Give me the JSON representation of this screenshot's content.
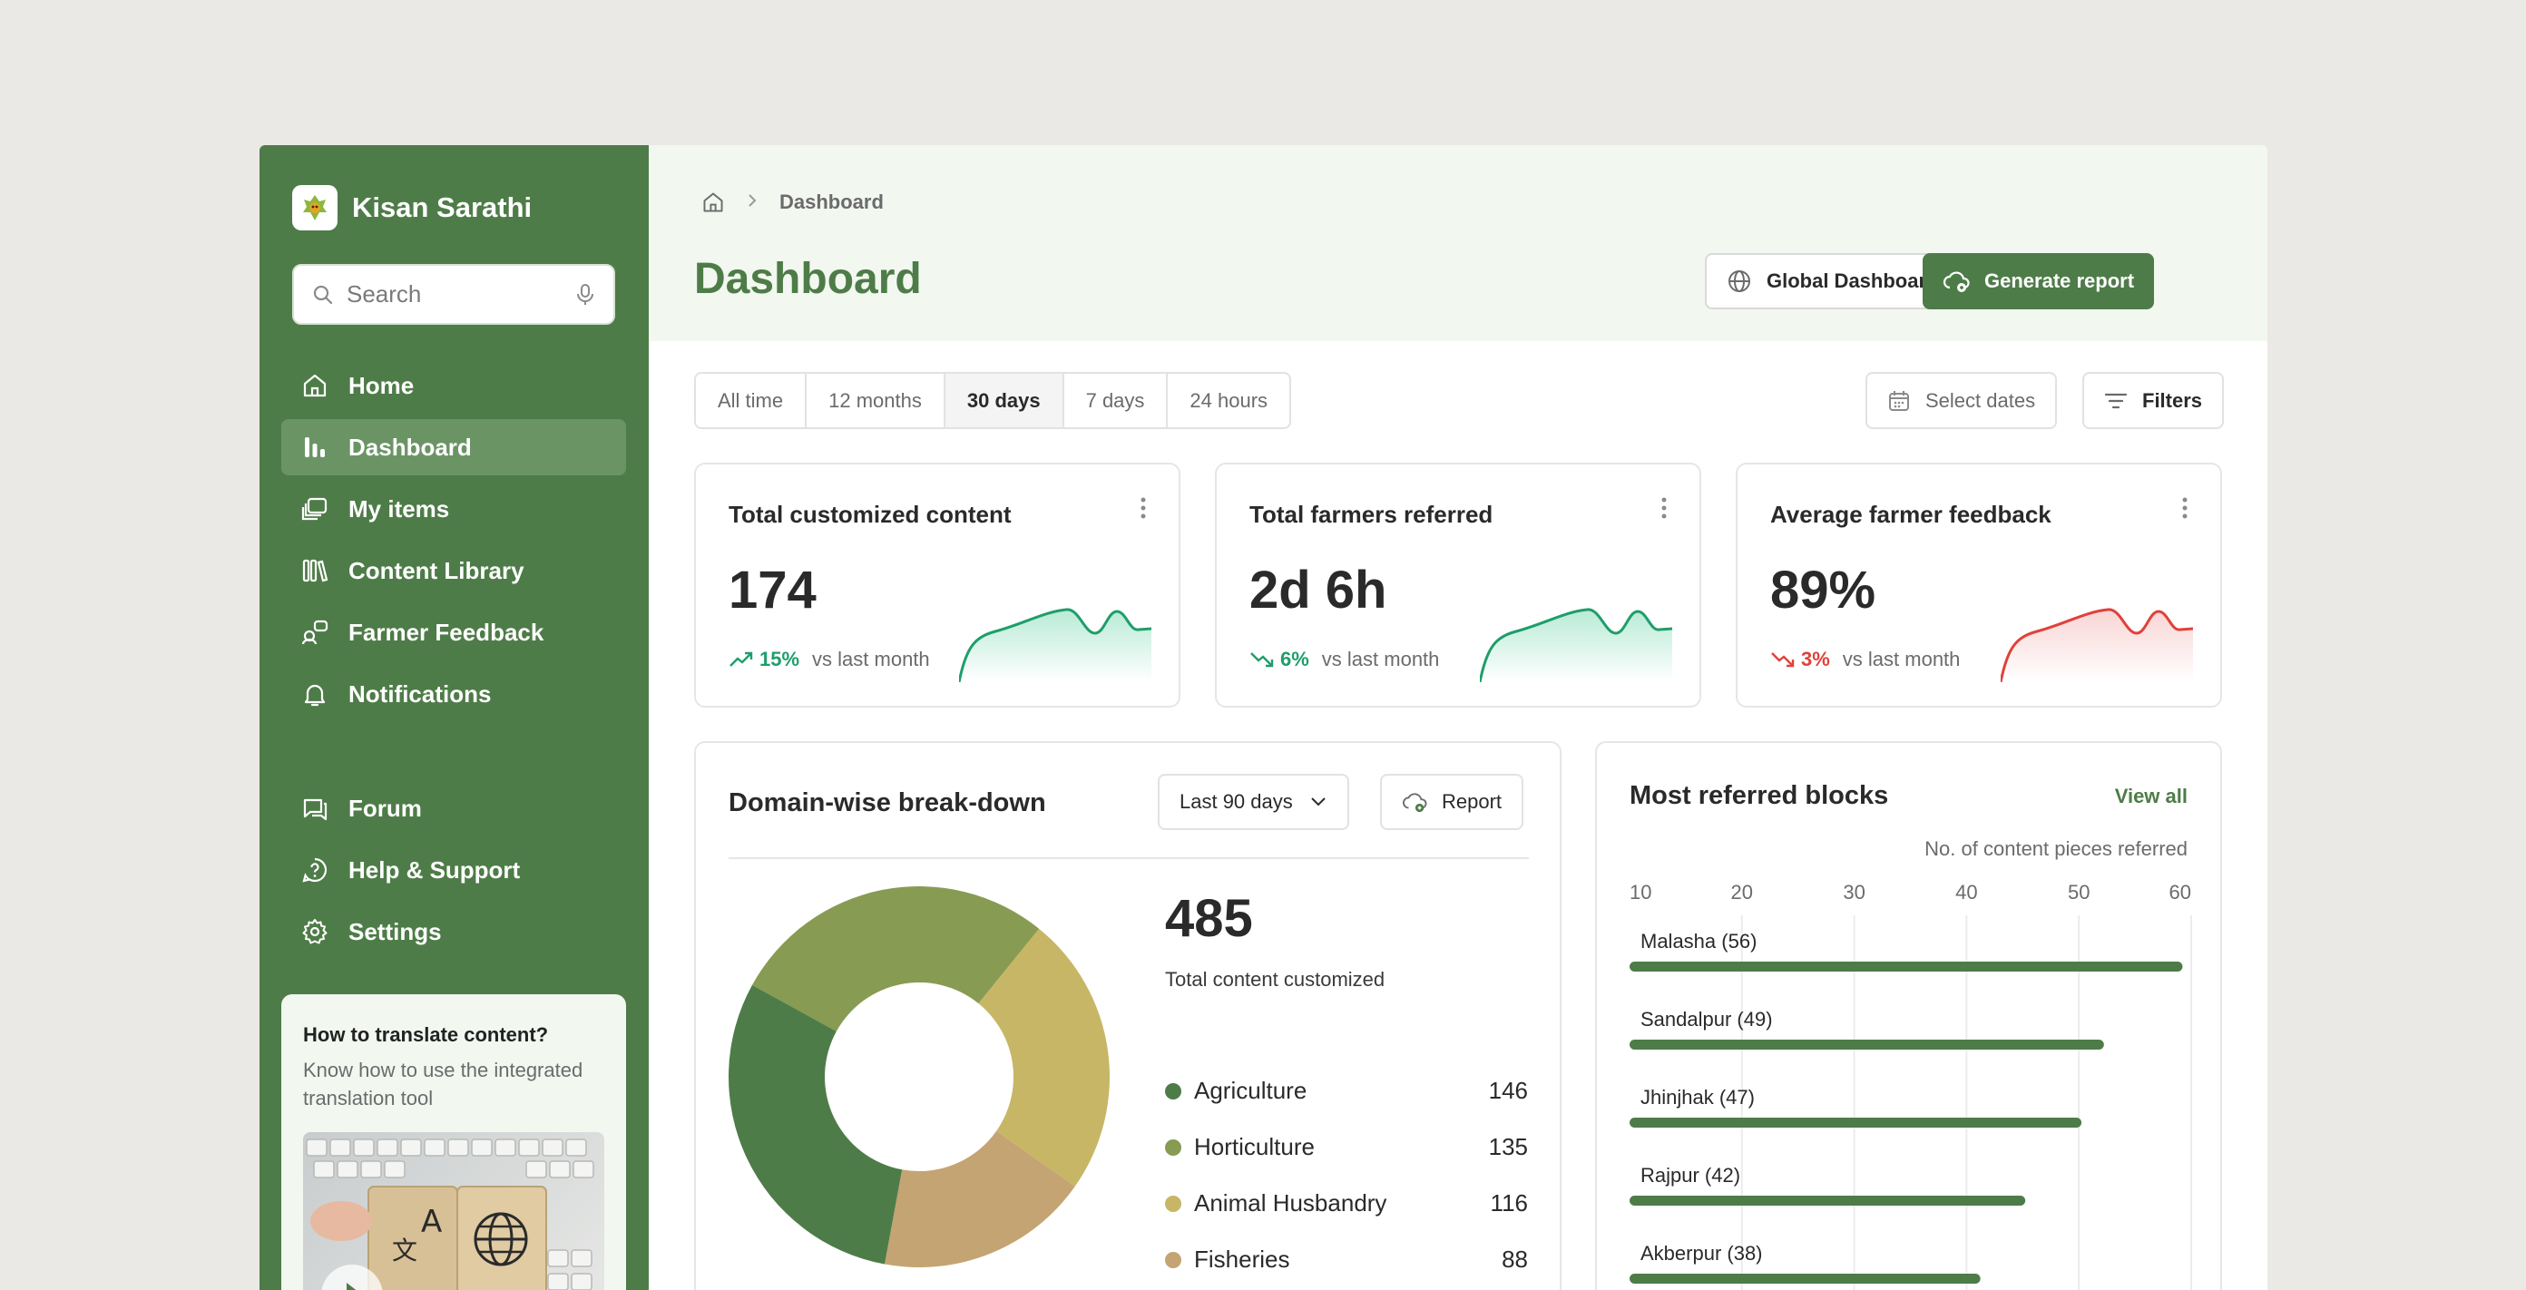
{
  "brand": {
    "name": "Kisan Sarathi"
  },
  "search": {
    "placeholder": "Search"
  },
  "nav_top": [
    {
      "label": "Home",
      "icon": "home-icon"
    },
    {
      "label": "Dashboard",
      "icon": "bar-chart-icon",
      "active": true
    },
    {
      "label": "My items",
      "icon": "stack-icon"
    },
    {
      "label": "Content Library",
      "icon": "library-icon"
    },
    {
      "label": "Farmer Feedback",
      "icon": "feedback-icon"
    },
    {
      "label": "Notifications",
      "icon": "bell-icon"
    }
  ],
  "nav_bottom": [
    {
      "label": "Forum",
      "icon": "forum-icon"
    },
    {
      "label": "Help & Support",
      "icon": "help-icon"
    },
    {
      "label": "Settings",
      "icon": "gear-icon"
    }
  ],
  "promo": {
    "title": "How to translate content?",
    "subtitle": "Know how to use the integrated translation tool"
  },
  "breadcrumb": {
    "current": "Dashboard"
  },
  "header": {
    "title": "Dashboard",
    "global_label": "Global Dashboard",
    "generate_label": "Generate report"
  },
  "tabs": [
    "All time",
    "12 months",
    "30 days",
    "7 days",
    "24 hours"
  ],
  "active_tab": "30 days",
  "toolbar": {
    "dates_label": "Select dates",
    "filters_label": "Filters"
  },
  "stats": [
    {
      "title": "Total customized content",
      "value": "174",
      "pct": "15%",
      "trend": "up",
      "vs": "vs last month",
      "color": "#1e9e6a"
    },
    {
      "title": "Total farmers referred",
      "value": "2d 6h",
      "pct": "6%",
      "trend": "down",
      "vs": "vs last month",
      "color": "#1e9e6a"
    },
    {
      "title": "Average farmer feedback",
      "value": "89%",
      "pct": "3%",
      "trend": "down",
      "vs": "vs last month",
      "color": "#e0413a"
    }
  ],
  "domain": {
    "title": "Domain-wise break-down",
    "range_label": "Last 90 days",
    "report_label": "Report",
    "total": "485",
    "total_label": "Total content customized"
  },
  "blocks": {
    "title": "Most referred blocks",
    "view_all": "View all",
    "axis_title": "No. of content pieces referred"
  },
  "chart_data": [
    {
      "type": "pie",
      "categories": [
        "Agriculture",
        "Horticulture",
        "Animal Husbandry",
        "Fisheries"
      ],
      "values": [
        146,
        135,
        116,
        88
      ],
      "colors": [
        "#4e7c48",
        "#879b53",
        "#c7b665",
        "#c4a472"
      ]
    },
    {
      "type": "bar",
      "orientation": "horizontal",
      "categories": [
        "Malasha",
        "Sandalpur",
        "Jhinjhak",
        "Rajpur",
        "Akberpur"
      ],
      "values": [
        56,
        49,
        47,
        42,
        38
      ],
      "xlabel": "No. of content pieces referred",
      "xticks": [
        10,
        20,
        30,
        40,
        50,
        60
      ],
      "xlim": [
        10,
        60
      ],
      "color": "#4e7c48"
    }
  ]
}
